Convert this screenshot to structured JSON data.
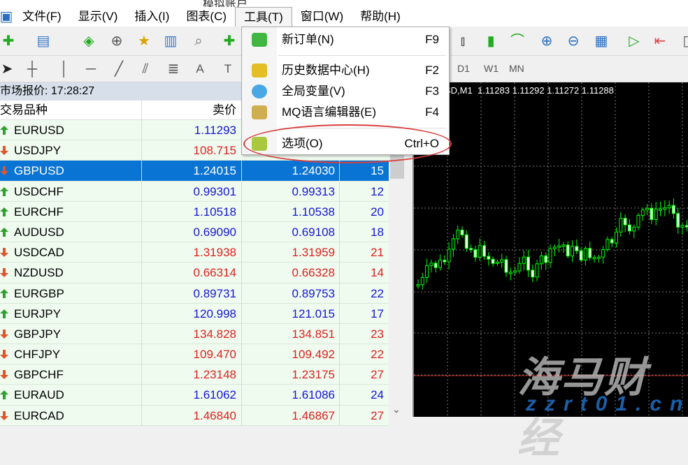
{
  "title": "模拟账户",
  "menubar": [
    "文件(F)",
    "显示(V)",
    "插入(I)",
    "图表(C)",
    "工具(T)",
    "窗口(W)",
    "帮助(H)"
  ],
  "open_menu_index": 4,
  "timeframes": [
    "D1",
    "W1",
    "MN"
  ],
  "tools_menu": {
    "items": [
      {
        "label": "新订单(N)",
        "shortcut": "F9",
        "icon": "new-order-icon"
      },
      {
        "label": "历史数据中心(H)",
        "shortcut": "F2",
        "icon": "history-center-icon"
      },
      {
        "label": "全局变量(V)",
        "shortcut": "F3",
        "icon": "global-variables-icon"
      },
      {
        "label": "MQ语言编辑器(E)",
        "shortcut": "F4",
        "icon": "metaeditor-icon"
      },
      {
        "label": "选项(O)",
        "shortcut": "Ctrl+O",
        "icon": "options-icon",
        "highlighted_by_annotation": true
      }
    ],
    "annotation_color": "#d84040"
  },
  "market_watch": {
    "title": "市场报价: 17:28:27",
    "columns": [
      "交易品种",
      "卖价"
    ],
    "rows": [
      {
        "symbol": "EURUSD",
        "bid": "1.11293",
        "ask": "",
        "spread": "",
        "dir": "up"
      },
      {
        "symbol": "USDJPY",
        "bid": "108.715",
        "ask": "",
        "spread": "",
        "dir": "down"
      },
      {
        "symbol": "GBPUSD",
        "bid": "1.24015",
        "ask": "1.24030",
        "spread": "15",
        "dir": "down",
        "selected": true
      },
      {
        "symbol": "USDCHF",
        "bid": "0.99301",
        "ask": "0.99313",
        "spread": "12",
        "dir": "up"
      },
      {
        "symbol": "EURCHF",
        "bid": "1.10518",
        "ask": "1.10538",
        "spread": "20",
        "dir": "up"
      },
      {
        "symbol": "AUDUSD",
        "bid": "0.69090",
        "ask": "0.69108",
        "spread": "18",
        "dir": "up"
      },
      {
        "symbol": "USDCAD",
        "bid": "1.31938",
        "ask": "1.31959",
        "spread": "21",
        "dir": "down"
      },
      {
        "symbol": "NZDUSD",
        "bid": "0.66314",
        "ask": "0.66328",
        "spread": "14",
        "dir": "down"
      },
      {
        "symbol": "EURGBP",
        "bid": "0.89731",
        "ask": "0.89753",
        "spread": "22",
        "dir": "up"
      },
      {
        "symbol": "EURJPY",
        "bid": "120.998",
        "ask": "121.015",
        "spread": "17",
        "dir": "up"
      },
      {
        "symbol": "GBPJPY",
        "bid": "134.828",
        "ask": "134.851",
        "spread": "23",
        "dir": "down"
      },
      {
        "symbol": "CHFJPY",
        "bid": "109.470",
        "ask": "109.492",
        "spread": "22",
        "dir": "down"
      },
      {
        "symbol": "GBPCHF",
        "bid": "1.23148",
        "ask": "1.23175",
        "spread": "27",
        "dir": "down"
      },
      {
        "symbol": "EURAUD",
        "bid": "1.61062",
        "ask": "1.61086",
        "spread": "24",
        "dir": "up"
      },
      {
        "symbol": "EURCAD",
        "bid": "1.46840",
        "ask": "1.46867",
        "spread": "27",
        "dir": "down"
      }
    ],
    "colors": {
      "up": "#1515d6",
      "down": "#e02020",
      "selected": "#0a74d4"
    }
  },
  "chart": {
    "info": "SD,M1  1.11283 1.11292 1.11272 1.11288",
    "candle_color": "#00ff00",
    "background": "#000000"
  },
  "watermark": {
    "cn": "海马财经",
    "url": "zzrt01.cn"
  }
}
